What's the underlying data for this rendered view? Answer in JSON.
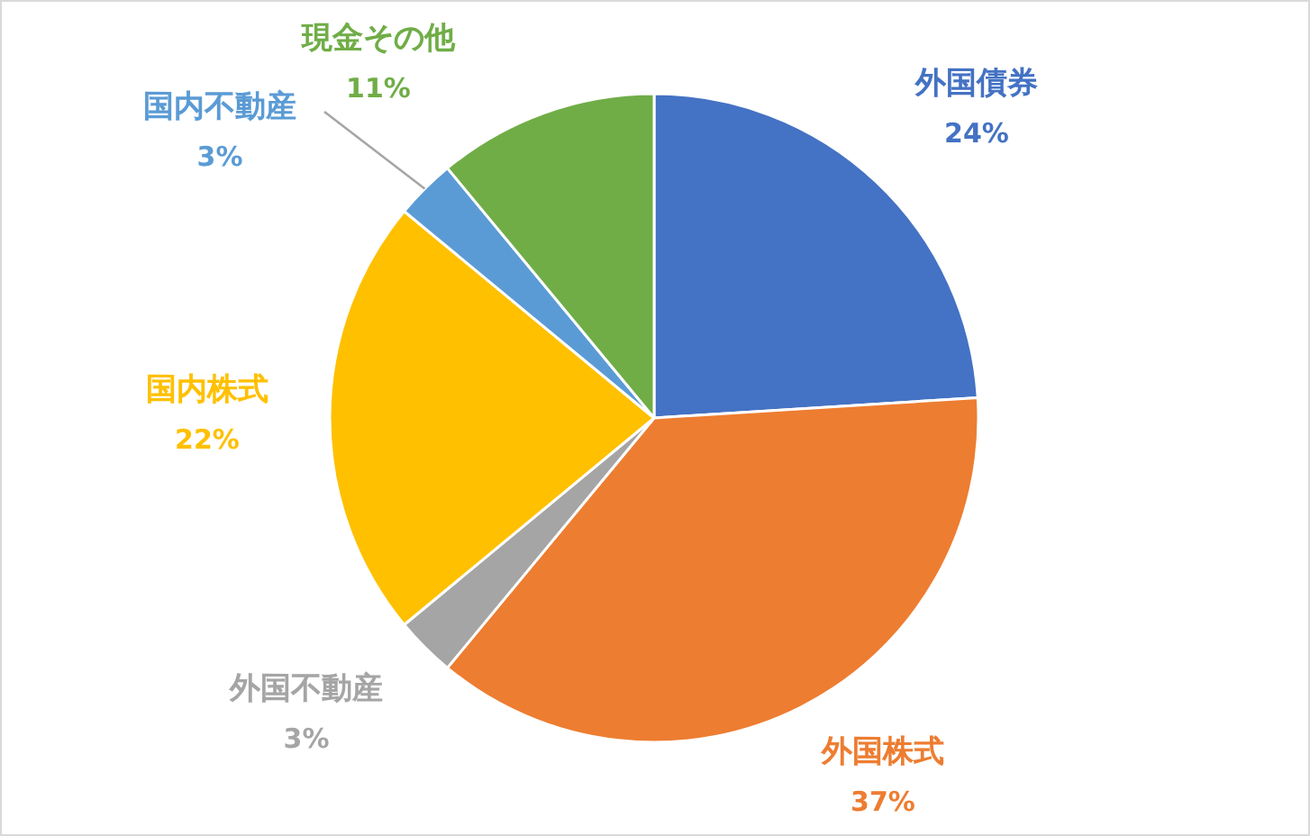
{
  "chart_data": {
    "type": "pie",
    "categories": [
      "外国債券",
      "外国株式",
      "外国不動産",
      "国内株式",
      "国内不動産",
      "現金その他"
    ],
    "values": [
      24,
      37,
      3,
      22,
      3,
      11
    ],
    "colors": [
      "#4472c4",
      "#ed7d31",
      "#a5a5a5",
      "#ffc000",
      "#5b9bd5",
      "#70ad47"
    ],
    "value_labels": [
      "24%",
      "37%",
      "3%",
      "22%",
      "3%",
      "11%"
    ],
    "legend": false
  }
}
